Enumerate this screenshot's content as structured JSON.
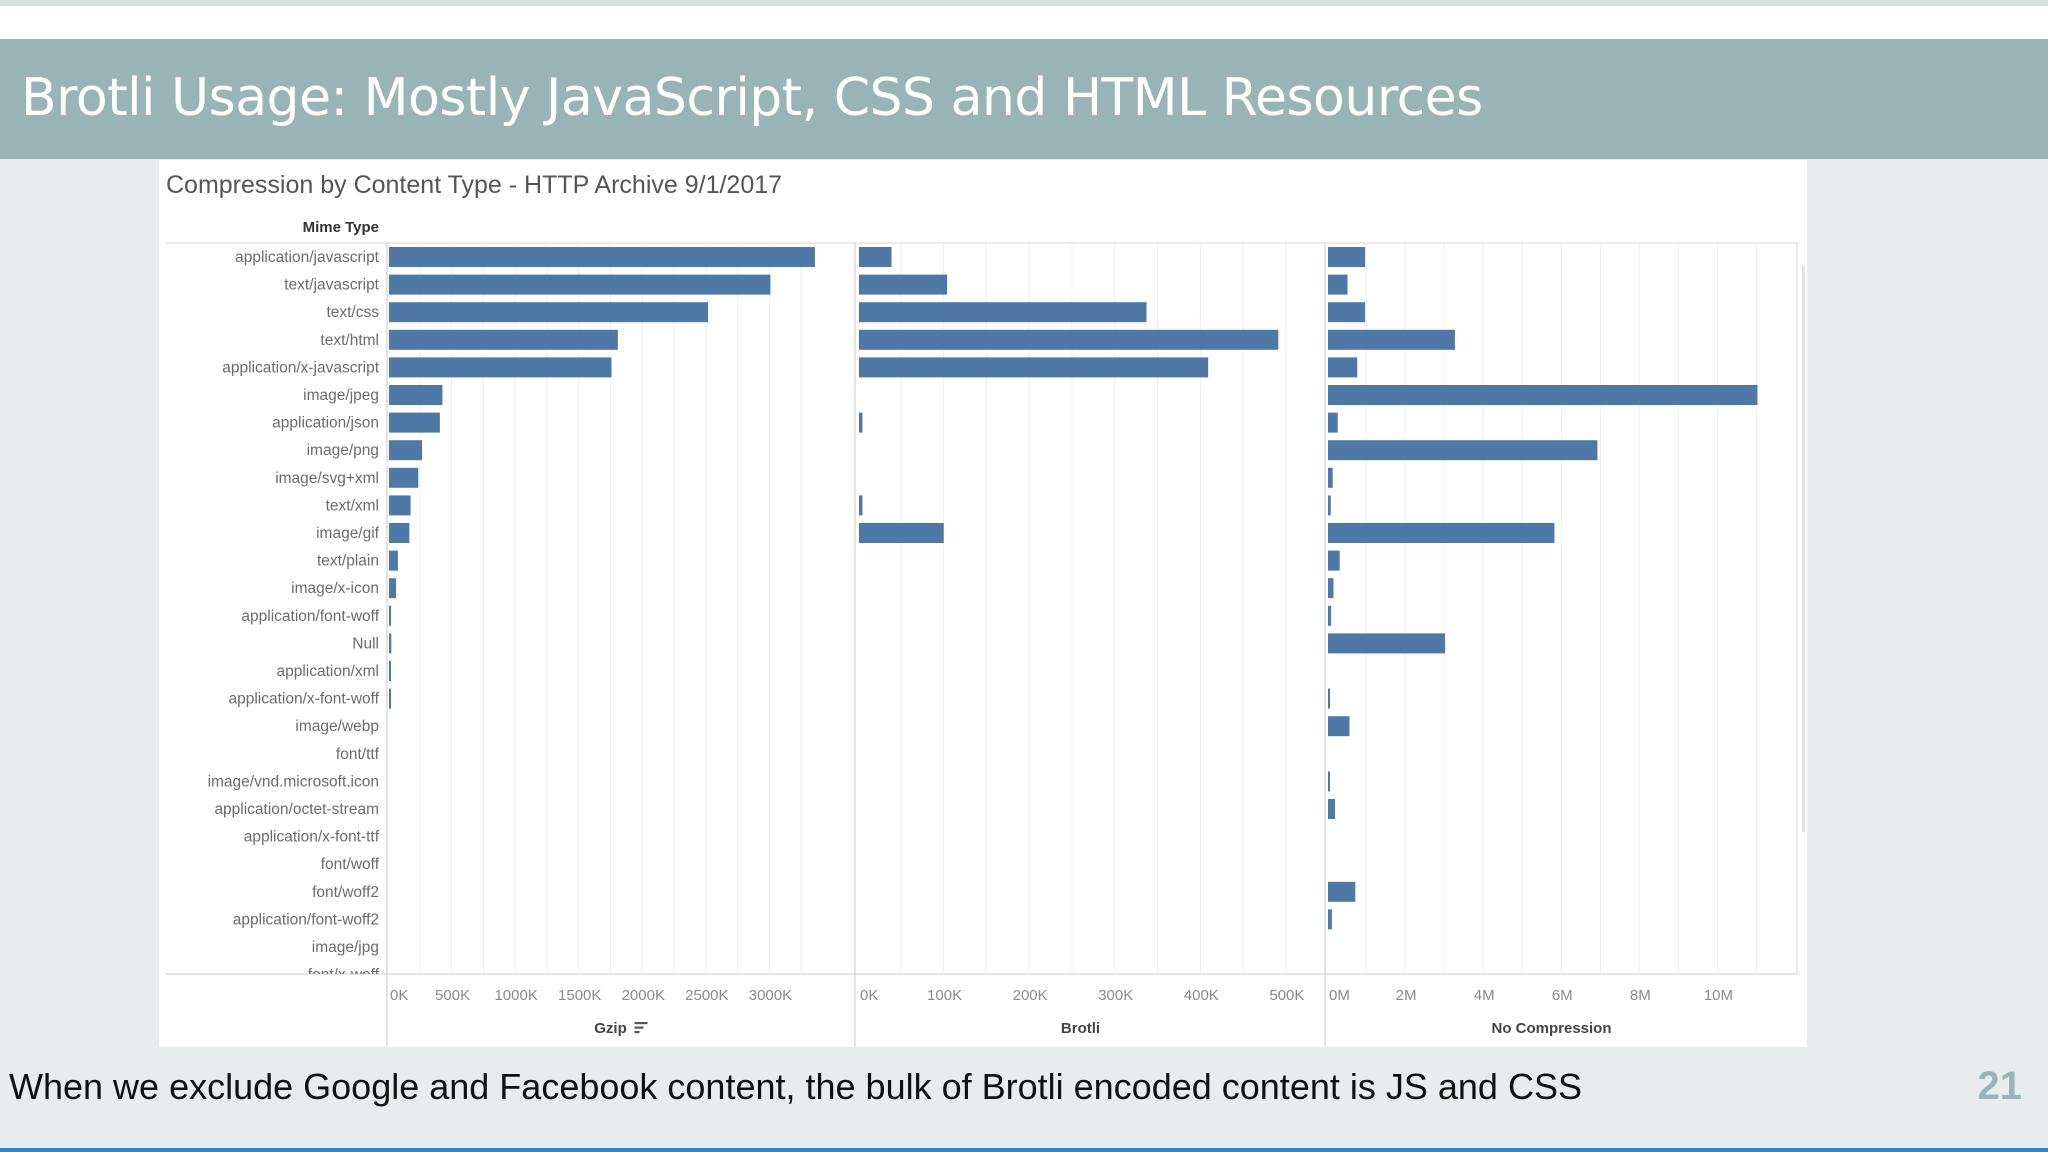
{
  "slide": {
    "title": "Brotli Usage: Mostly JavaScript, CSS and HTML Resources",
    "caption": "When we exclude Google and Facebook content, the bulk of Brotli encoded content is JS and CSS",
    "page_number": "21",
    "colors": {
      "title_band": "#98b4b7",
      "bar": "#4e79a7",
      "page_number": "#98b4b7",
      "bottom_rule": "#2e86c9"
    }
  },
  "chart_data": {
    "type": "bar",
    "orientation": "horizontal",
    "title": "Compression by Content Type - HTTP Archive 9/1/2017",
    "row_header": "Mime Type",
    "categories": [
      "application/javascript",
      "text/javascript",
      "text/css",
      "text/html",
      "application/x-javascript",
      "image/jpeg",
      "application/json",
      "image/png",
      "image/svg+xml",
      "text/xml",
      "image/gif",
      "text/plain",
      "image/x-icon",
      "application/font-woff",
      "Null",
      "application/xml",
      "application/x-font-woff",
      "image/webp",
      "font/ttf",
      "image/vnd.microsoft.icon",
      "application/octet-stream",
      "application/x-font-ttf",
      "font/woff",
      "font/woff2",
      "application/font-woff2",
      "image/jpg"
    ],
    "partial_category": "font/x-woff",
    "grid": true,
    "series": [
      {
        "name": "Gzip",
        "sort_icon": "sort-descending-icon",
        "xlim": [
          0,
          3500000
        ],
        "ticks": [
          0,
          500000,
          1000000,
          1500000,
          2000000,
          2500000,
          3000000
        ],
        "tick_labels": [
          "0K",
          "500K",
          "1000K",
          "1500K",
          "2000K",
          "2500K",
          "3000K"
        ],
        "values": [
          3350000,
          3000000,
          2510000,
          1800000,
          1750000,
          420000,
          400000,
          260000,
          230000,
          170000,
          160000,
          70000,
          55000,
          15000,
          18000,
          12000,
          10000,
          0,
          0,
          0,
          0,
          0,
          0,
          0,
          0,
          0
        ]
      },
      {
        "name": "Brotli",
        "xlim": [
          0,
          520000
        ],
        "ticks": [
          0,
          100000,
          200000,
          300000,
          400000,
          500000
        ],
        "tick_labels": [
          "0K",
          "100K",
          "200K",
          "300K",
          "400K",
          "500K"
        ],
        "values": [
          38000,
          103000,
          336000,
          490000,
          408000,
          0,
          4000,
          0,
          0,
          4000,
          99000,
          0,
          0,
          0,
          0,
          0,
          0,
          0,
          0,
          0,
          0,
          0,
          0,
          0,
          0,
          0
        ]
      },
      {
        "name": "No Compression",
        "xlim": [
          0,
          11500000
        ],
        "ticks": [
          0,
          2000000,
          4000000,
          6000000,
          8000000,
          10000000
        ],
        "tick_labels": [
          "0M",
          "2M",
          "4M",
          "6M",
          "8M",
          "10M"
        ],
        "values": [
          950000,
          500000,
          950000,
          3250000,
          750000,
          11000000,
          250000,
          6900000,
          120000,
          70000,
          5800000,
          300000,
          140000,
          80000,
          3000000,
          0,
          50000,
          550000,
          0,
          40000,
          180000,
          0,
          0,
          700000,
          100000,
          0
        ]
      }
    ]
  }
}
